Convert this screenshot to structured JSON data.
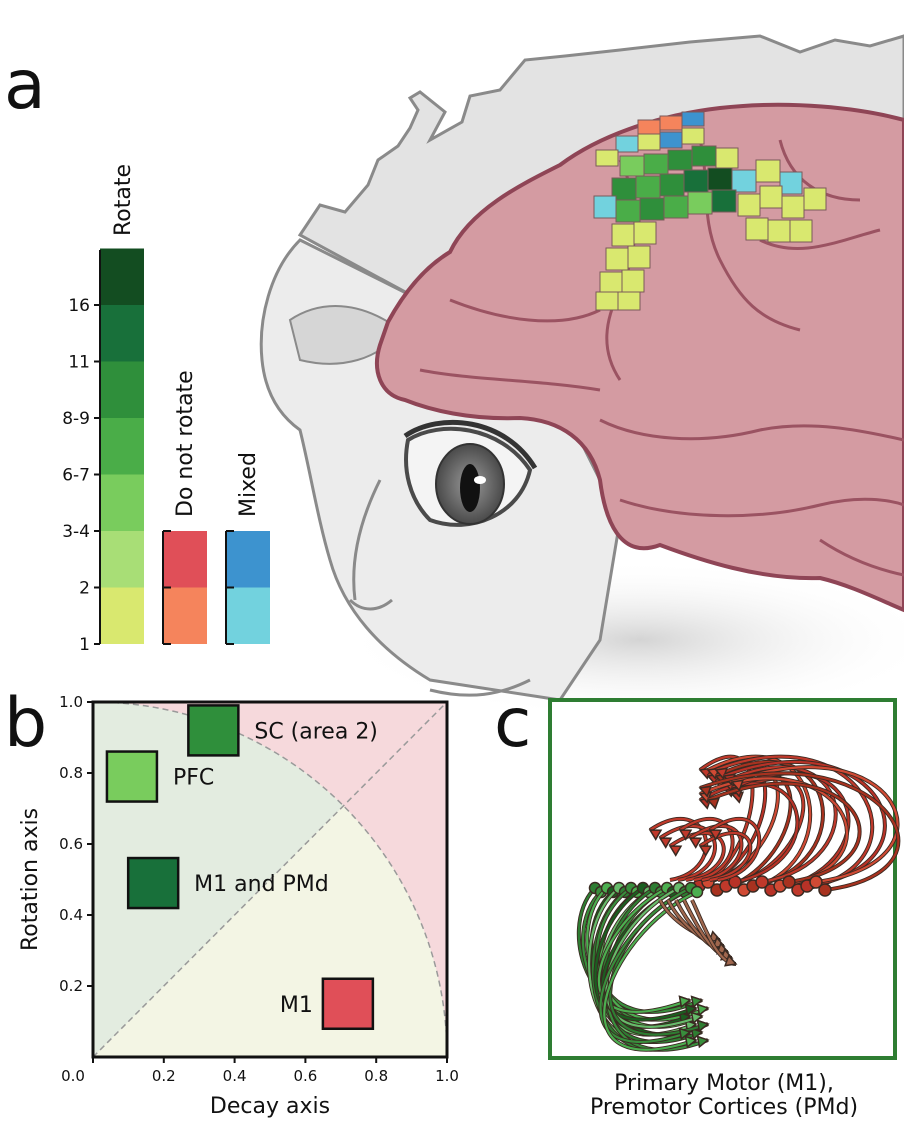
{
  "panels": {
    "a": {
      "letter": "a",
      "legend": {
        "rotate_label": "Rotate",
        "rotate_ticks": [
          "1",
          "2",
          "3-4",
          "6-7",
          "8-9",
          "11",
          "16"
        ],
        "rotate_colors": [
          "#d9e86f",
          "#a8de76",
          "#79cc5d",
          "#4aad48",
          "#2f8f3b",
          "#18703a",
          "#134d21"
        ],
        "do_not_rotate_label": "Do not rotate",
        "do_not_rotate_colors": [
          "#f5845c",
          "#e04f58"
        ],
        "mixed_label": "Mixed",
        "mixed_colors": [
          "#72d2de",
          "#3d93cf"
        ]
      }
    },
    "b": {
      "letter": "b",
      "annotations": [
        "SC (area 2)",
        "PFC",
        "M1 and PMd",
        "M1"
      ]
    },
    "c": {
      "letter": "c",
      "caption_line1": "Primary Motor (M1),",
      "caption_line2": "Premotor Cortices (PMd)"
    }
  },
  "chart_data": {
    "type": "scatter",
    "xlabel": "Decay axis",
    "ylabel": "Rotation axis",
    "xlim": [
      0.0,
      1.0
    ],
    "ylim": [
      0.0,
      1.0
    ],
    "xticks": [
      "0.0",
      "0.2",
      "0.4",
      "0.6",
      "0.8",
      "1.0"
    ],
    "yticks": [
      "0.0",
      "0.2",
      "0.4",
      "0.6",
      "0.8",
      "1.0"
    ],
    "grid": false,
    "points": [
      {
        "label": "SC (area 2)",
        "x": 0.34,
        "y": 0.92,
        "color": "#2f8f3b"
      },
      {
        "label": "PFC",
        "x": 0.11,
        "y": 0.79,
        "color": "#79cc5d"
      },
      {
        "label": "M1 and PMd",
        "x": 0.17,
        "y": 0.49,
        "color": "#18703a"
      },
      {
        "label": "M1",
        "x": 0.72,
        "y": 0.15,
        "color": "#e04f58"
      }
    ]
  }
}
